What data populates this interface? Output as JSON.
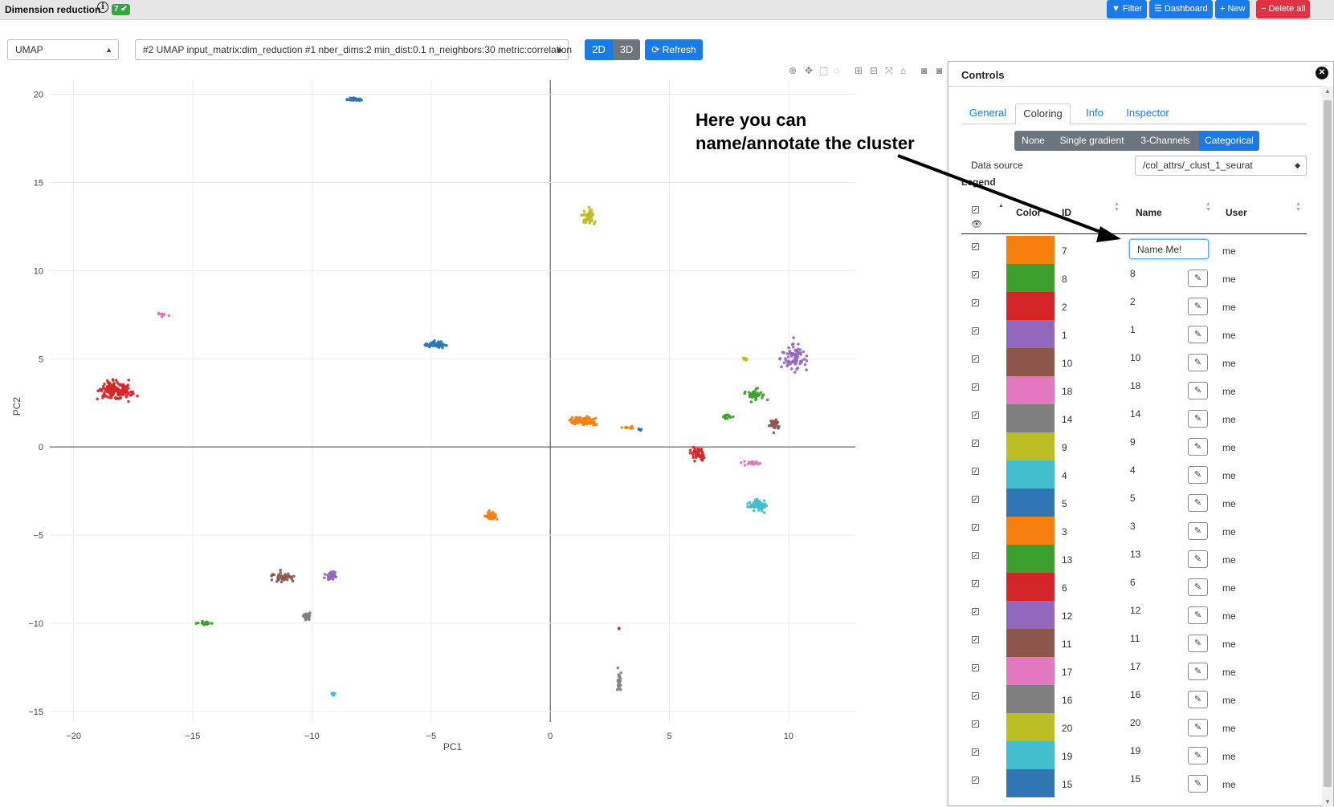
{
  "header": {
    "title": "Dimension reduction",
    "badge": "7",
    "buttons": [
      {
        "label": "Filter",
        "icon": "filter-icon"
      },
      {
        "label": "Dashboard",
        "icon": "bars-icon"
      },
      {
        "label": "New",
        "icon": "plus-icon"
      },
      {
        "label": "Delete all",
        "icon": "minus-icon"
      }
    ]
  },
  "toolbar": {
    "method_select": "UMAP",
    "run_select": "#2 UMAP input_matrix:dim_reduction #1 nber_dims:2 min_dist:0.1 n_neighbors:30 metric:correlation",
    "view_2d": "2D",
    "view_3d": "3D",
    "refresh": "Refresh"
  },
  "annotation": {
    "line1": "Here you can",
    "line2": "name/annotate the cluster"
  },
  "controls": {
    "title": "Controls",
    "tabs": [
      "General",
      "Coloring",
      "Info",
      "Inspector"
    ],
    "active_tab": "Coloring",
    "coloring_modes": [
      "None",
      "Single gradient",
      "3-Channels",
      "Categorical"
    ],
    "active_mode": "Categorical",
    "data_source_label": "Data source",
    "data_source_value": "/col_attrs/_clust_1_seurat",
    "legend_label": "Legend",
    "columns": {
      "color": "Color",
      "id": "ID",
      "name": "Name",
      "user": "User"
    },
    "name_input_value": "Name Me!",
    "rows": [
      {
        "color": "#f77f0e",
        "id": "7",
        "name": "",
        "user": "me"
      },
      {
        "color": "#3ca02c",
        "id": "8",
        "name": "8",
        "user": "me"
      },
      {
        "color": "#d42628",
        "id": "2",
        "name": "2",
        "user": "me"
      },
      {
        "color": "#9367bd",
        "id": "1",
        "name": "1",
        "user": "me"
      },
      {
        "color": "#8c564b",
        "id": "10",
        "name": "10",
        "user": "me"
      },
      {
        "color": "#e377c2",
        "id": "18",
        "name": "18",
        "user": "me"
      },
      {
        "color": "#7f7f7f",
        "id": "14",
        "name": "14",
        "user": "me"
      },
      {
        "color": "#bcbd22",
        "id": "9",
        "name": "9",
        "user": "me"
      },
      {
        "color": "#42becf",
        "id": "4",
        "name": "4",
        "user": "me"
      },
      {
        "color": "#2f77b4",
        "id": "5",
        "name": "5",
        "user": "me"
      },
      {
        "color": "#f77f0e",
        "id": "3",
        "name": "3",
        "user": "me"
      },
      {
        "color": "#3ca02c",
        "id": "13",
        "name": "13",
        "user": "me"
      },
      {
        "color": "#d42628",
        "id": "6",
        "name": "6",
        "user": "me"
      },
      {
        "color": "#9367bd",
        "id": "12",
        "name": "12",
        "user": "me"
      },
      {
        "color": "#8c564b",
        "id": "11",
        "name": "11",
        "user": "me"
      },
      {
        "color": "#e377c2",
        "id": "17",
        "name": "17",
        "user": "me"
      },
      {
        "color": "#7f7f7f",
        "id": "16",
        "name": "16",
        "user": "me"
      },
      {
        "color": "#bcbd22",
        "id": "20",
        "name": "20",
        "user": "me"
      },
      {
        "color": "#42becf",
        "id": "19",
        "name": "19",
        "user": "me"
      },
      {
        "color": "#2f77b4",
        "id": "15",
        "name": "15",
        "user": "me"
      }
    ]
  },
  "chart_data": {
    "type": "scatter",
    "xlabel": "PC1",
    "ylabel": "PC2",
    "xlim": [
      -21,
      12.8
    ],
    "ylim": [
      -15.6,
      20.8
    ],
    "xticks": [
      -20,
      -15,
      -10,
      -5,
      0,
      5,
      10
    ],
    "yticks": [
      -15,
      -10,
      -5,
      0,
      5,
      10,
      15,
      20
    ],
    "grid": true,
    "clusters": [
      {
        "id": "5",
        "color": "#2f77b4",
        "cx": -8.2,
        "cy": 19.7,
        "sx": 0.3,
        "sy": 0.08,
        "n": 30
      },
      {
        "id": "9",
        "color": "#bcbd22",
        "cx": 1.6,
        "cy": 13.1,
        "sx": 0.25,
        "sy": 0.35,
        "n": 45
      },
      {
        "id": "18",
        "color": "#e377c2",
        "cx": -16.3,
        "cy": 7.5,
        "sx": 0.2,
        "sy": 0.08,
        "n": 15
      },
      {
        "id": "15",
        "color": "#2f77b4",
        "cx": -4.8,
        "cy": 5.8,
        "sx": 0.4,
        "sy": 0.15,
        "n": 60
      },
      {
        "id": "2",
        "color": "#d42628",
        "cx": -18.3,
        "cy": 3.2,
        "sx": 0.7,
        "sy": 0.45,
        "n": 150
      },
      {
        "id": "7",
        "color": "#f77f0e",
        "cx": 1.4,
        "cy": 1.5,
        "sx": 0.5,
        "sy": 0.2,
        "n": 90
      },
      {
        "id": "7",
        "color": "#f77f0e",
        "cx": 3.2,
        "cy": 1.1,
        "sx": 0.3,
        "sy": 0.05,
        "n": 8
      },
      {
        "id": "5",
        "color": "#2f77b4",
        "cx": 3.8,
        "cy": 1.0,
        "sx": 0.1,
        "sy": 0.05,
        "n": 4
      },
      {
        "id": "6",
        "color": "#d42628",
        "cx": 6.2,
        "cy": -0.4,
        "sx": 0.35,
        "sy": 0.3,
        "n": 45
      },
      {
        "id": "18",
        "color": "#e377c2",
        "cx": 8.5,
        "cy": -0.9,
        "sx": 0.4,
        "sy": 0.12,
        "n": 25
      },
      {
        "id": "4",
        "color": "#42becf",
        "cx": 8.7,
        "cy": -3.3,
        "sx": 0.35,
        "sy": 0.25,
        "n": 70
      },
      {
        "id": "1",
        "color": "#9367bd",
        "cx": 10.3,
        "cy": 5.1,
        "sx": 0.45,
        "sy": 0.7,
        "n": 80
      },
      {
        "id": "8",
        "color": "#3ca02c",
        "cx": 8.6,
        "cy": 2.9,
        "sx": 0.3,
        "sy": 0.3,
        "n": 40
      },
      {
        "id": "8",
        "color": "#3ca02c",
        "cx": 7.4,
        "cy": 1.7,
        "sx": 0.25,
        "sy": 0.15,
        "n": 15
      },
      {
        "id": "10",
        "color": "#8c564b",
        "cx": 9.4,
        "cy": 1.3,
        "sx": 0.2,
        "sy": 0.3,
        "n": 25
      },
      {
        "id": "20",
        "color": "#bcbd22",
        "cx": 8.2,
        "cy": 5.0,
        "sx": 0.08,
        "sy": 0.1,
        "n": 8
      },
      {
        "id": "3",
        "color": "#f77f0e",
        "cx": -2.5,
        "cy": -3.9,
        "sx": 0.2,
        "sy": 0.25,
        "n": 45
      },
      {
        "id": "11",
        "color": "#8c564b",
        "cx": -11.2,
        "cy": -7.4,
        "sx": 0.4,
        "sy": 0.25,
        "n": 40
      },
      {
        "id": "12",
        "color": "#9367bd",
        "cx": -9.2,
        "cy": -7.3,
        "sx": 0.25,
        "sy": 0.25,
        "n": 40
      },
      {
        "id": "16",
        "color": "#7f7f7f",
        "cx": -10.2,
        "cy": -9.6,
        "sx": 0.15,
        "sy": 0.2,
        "n": 25
      },
      {
        "id": "13",
        "color": "#3ca02c",
        "cx": -14.5,
        "cy": -10.0,
        "sx": 0.25,
        "sy": 0.08,
        "n": 25
      },
      {
        "id": "19",
        "color": "#42becf",
        "cx": -9.1,
        "cy": -14.0,
        "sx": 0.06,
        "sy": 0.08,
        "n": 8
      },
      {
        "id": "14",
        "color": "#7f7f7f",
        "cx": 2.9,
        "cy": -13.4,
        "sx": 0.1,
        "sy": 0.6,
        "n": 20
      },
      {
        "id": "6",
        "color": "#d42628",
        "cx": 2.9,
        "cy": -10.3,
        "sx": 0.03,
        "sy": 0.03,
        "n": 2
      }
    ]
  }
}
